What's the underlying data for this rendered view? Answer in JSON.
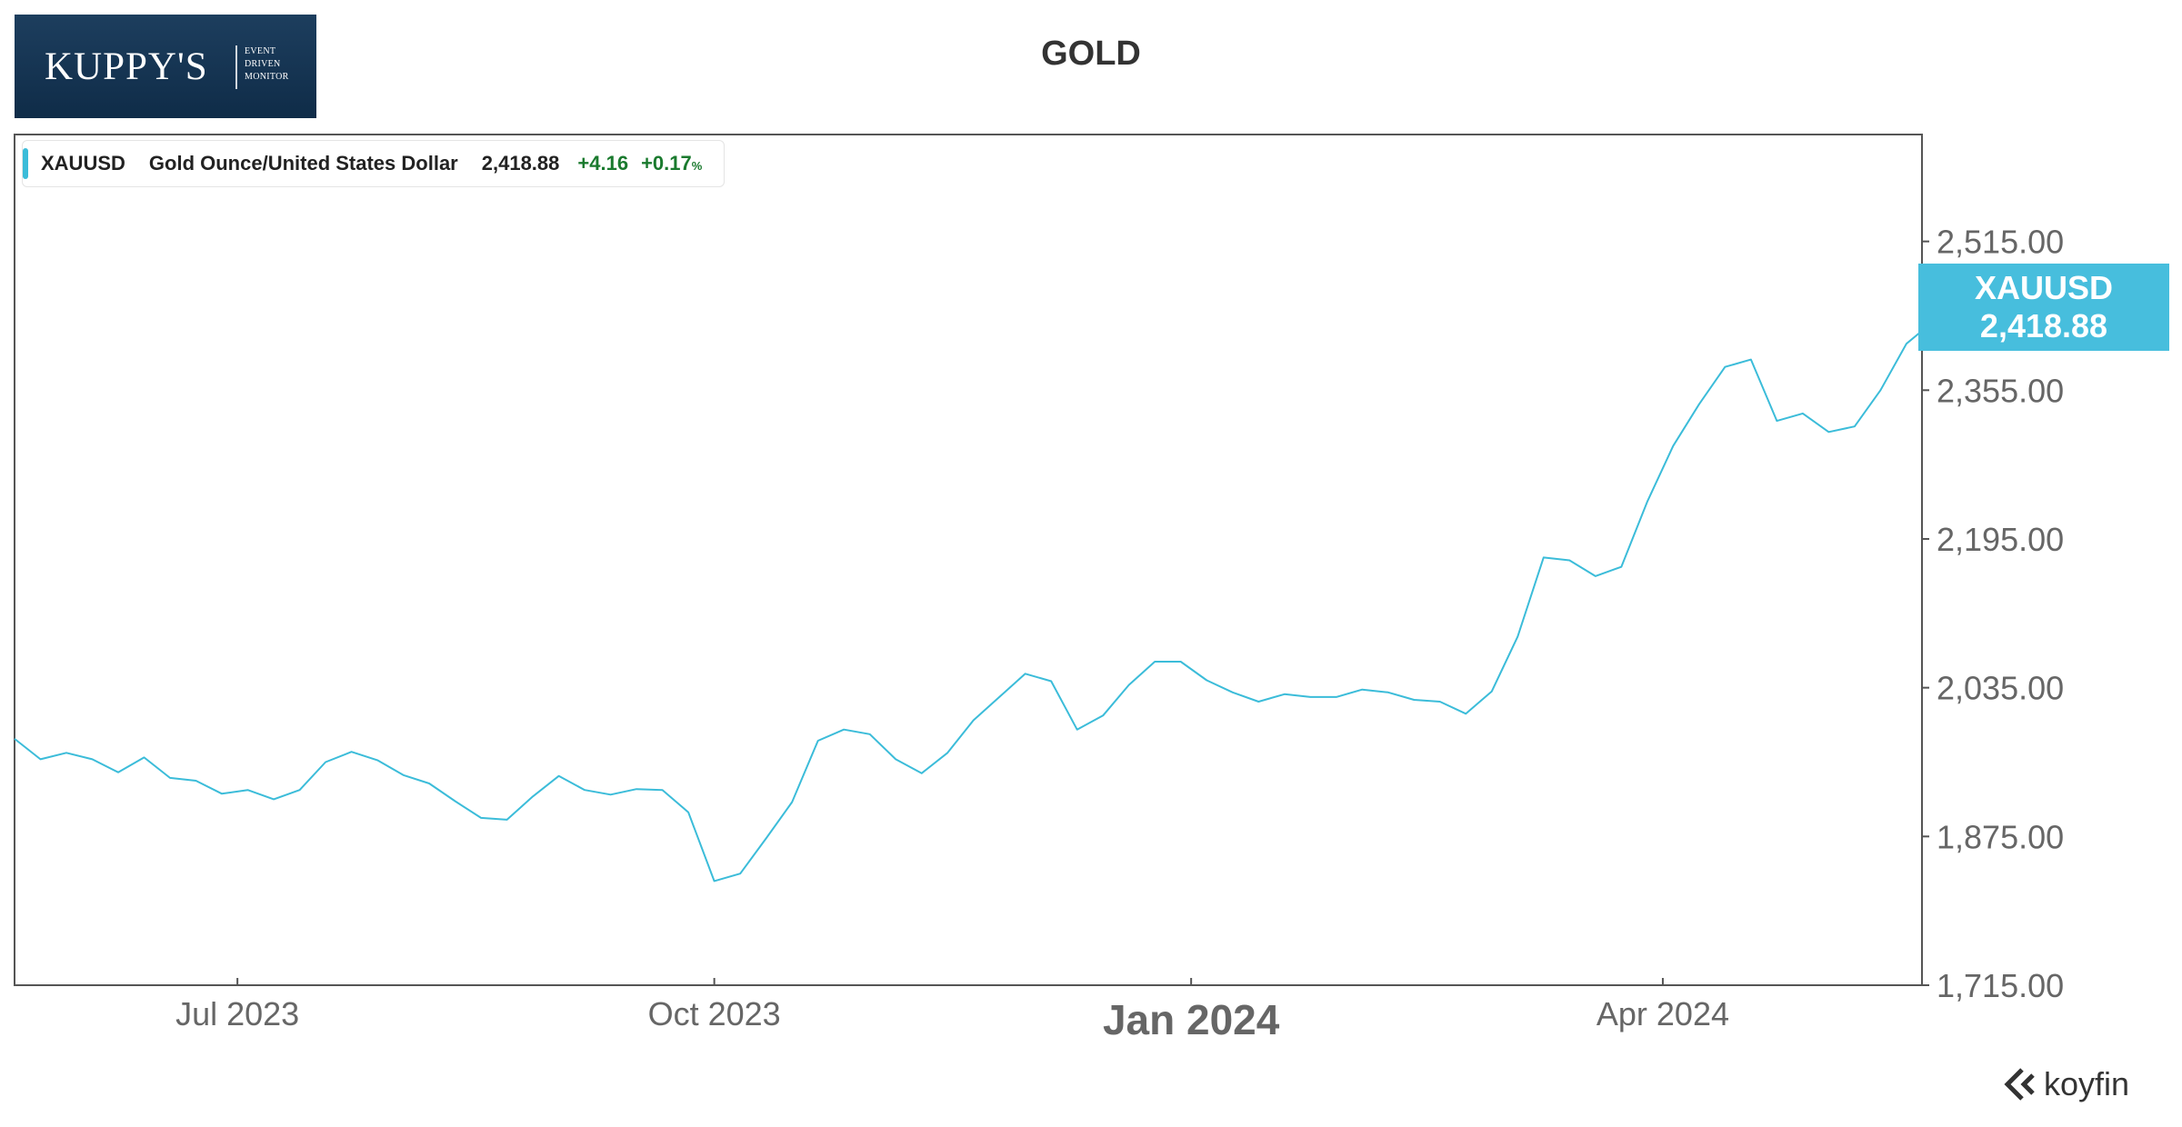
{
  "logo": {
    "main": "KUPPY'S",
    "sub_lines": [
      "EVENT",
      "DRIVEN",
      "MONITOR"
    ]
  },
  "colors": {
    "line": "#3bbcd9",
    "badge": "#47bedd",
    "positive": "#1a7a2e",
    "logo_bg": "#1d3e5e"
  },
  "legend": {
    "ticker": "XAUUSD",
    "name": "Gold Ounce/United States Dollar",
    "price": "2,418.88",
    "change": "+4.16",
    "change_pct": "+0.17",
    "pct_symbol": "%"
  },
  "badge": {
    "ticker": "XAUUSD",
    "price": "2,418.88"
  },
  "brand": {
    "name": "koyfin",
    "icon": "koyfin-logo-icon"
  },
  "chart_data": {
    "type": "line",
    "title": "GOLD",
    "xlabel": "",
    "ylabel": "",
    "x_ticks": [
      {
        "label": "Jul 2023",
        "date": "2023-07-01",
        "bold": false
      },
      {
        "label": "Oct 2023",
        "date": "2023-10-01",
        "bold": false
      },
      {
        "label": "Jan 2024",
        "date": "2024-01-01",
        "bold": true
      },
      {
        "label": "Apr 2024",
        "date": "2024-04-01",
        "bold": false
      }
    ],
    "y_ticks": [
      1715,
      1875,
      2035,
      2195,
      2355,
      2515
    ],
    "y_tick_labels": [
      "1,715.00",
      "1,875.00",
      "2,035.00",
      "2,195.00",
      "2,355.00",
      "2,515.00"
    ],
    "ylim": [
      1715,
      2630
    ],
    "xlim": [
      "2023-05-19",
      "2024-05-21"
    ],
    "axis_side": "right",
    "grid": false,
    "legend_placement": "top-left",
    "series": [
      {
        "name": "XAUUSD",
        "color": "#3bbcd9",
        "x": [
          "2023-05-19",
          "2023-05-24",
          "2023-05-29",
          "2023-06-03",
          "2023-06-08",
          "2023-06-13",
          "2023-06-18",
          "2023-06-23",
          "2023-06-28",
          "2023-07-03",
          "2023-07-08",
          "2023-07-13",
          "2023-07-18",
          "2023-07-23",
          "2023-07-28",
          "2023-08-02",
          "2023-08-07",
          "2023-08-12",
          "2023-08-17",
          "2023-08-22",
          "2023-08-27",
          "2023-09-01",
          "2023-09-06",
          "2023-09-11",
          "2023-09-16",
          "2023-09-21",
          "2023-09-26",
          "2023-10-01",
          "2023-10-06",
          "2023-10-11",
          "2023-10-16",
          "2023-10-21",
          "2023-10-26",
          "2023-10-31",
          "2023-11-05",
          "2023-11-10",
          "2023-11-15",
          "2023-11-20",
          "2023-11-25",
          "2023-11-30",
          "2023-12-05",
          "2023-12-10",
          "2023-12-15",
          "2023-12-20",
          "2023-12-25",
          "2023-12-30",
          "2024-01-04",
          "2024-01-09",
          "2024-01-14",
          "2024-01-19",
          "2024-01-24",
          "2024-01-29",
          "2024-02-03",
          "2024-02-08",
          "2024-02-13",
          "2024-02-18",
          "2024-02-23",
          "2024-02-28",
          "2024-03-04",
          "2024-03-09",
          "2024-03-14",
          "2024-03-19",
          "2024-03-24",
          "2024-03-29",
          "2024-04-03",
          "2024-04-08",
          "2024-04-13",
          "2024-04-18",
          "2024-04-23",
          "2024-04-28",
          "2024-05-03",
          "2024-05-08",
          "2024-05-13",
          "2024-05-18",
          "2024-05-21"
        ],
        "values": [
          1980,
          1958,
          1965,
          1958,
          1944,
          1960,
          1938,
          1935,
          1921,
          1925,
          1915,
          1925,
          1955,
          1966,
          1957,
          1941,
          1932,
          1913,
          1895,
          1893,
          1918,
          1940,
          1925,
          1920,
          1926,
          1925,
          1901,
          1827,
          1835,
          1873,
          1912,
          1978,
          1990,
          1985,
          1958,
          1943,
          1965,
          2000,
          2025,
          2050,
          2042,
          1990,
          2005,
          2038,
          2063,
          2063,
          2043,
          2030,
          2020,
          2028,
          2025,
          2025,
          2033,
          2030,
          2022,
          2020,
          2007,
          2031,
          2090,
          2175,
          2172,
          2155,
          2165,
          2235,
          2295,
          2340,
          2380,
          2388,
          2322,
          2330,
          2310,
          2316,
          2355,
          2405,
          2418.88
        ]
      }
    ]
  }
}
